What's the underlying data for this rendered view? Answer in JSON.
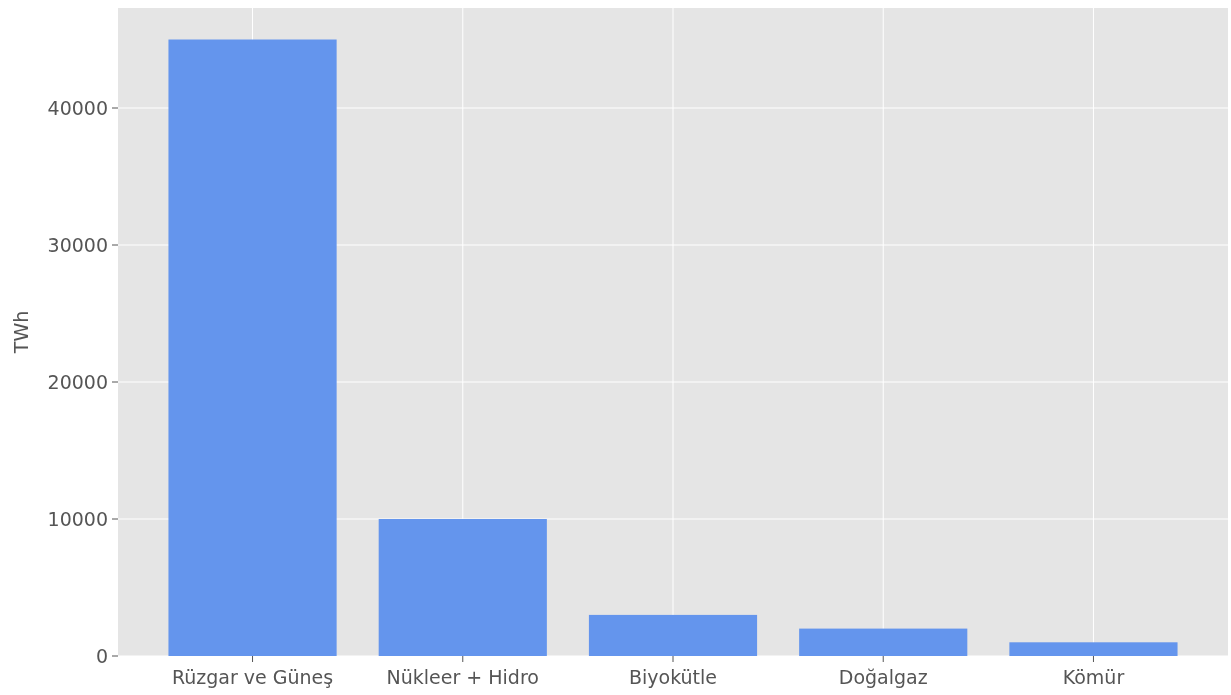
{
  "chart_data": {
    "type": "bar",
    "ylabel": "TWh",
    "categories": [
      "Rüzgar ve Güneş",
      "Nükleer + Hidro",
      "Biyokütle",
      "Doğalgaz",
      "Kömür"
    ],
    "values": [
      45000,
      10000,
      3000,
      2000,
      1000
    ],
    "color": "#6495ed",
    "ylim": [
      0,
      47300
    ],
    "yticks": [
      0,
      10000,
      20000,
      30000,
      40000
    ],
    "grid": true
  }
}
